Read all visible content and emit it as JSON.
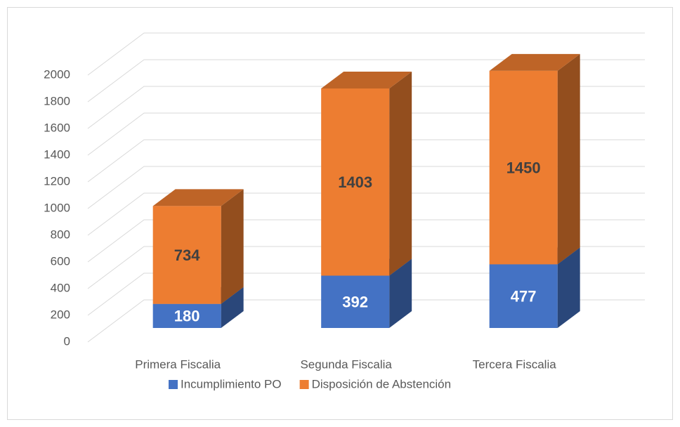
{
  "chart_data": {
    "type": "bar3d_stacked",
    "categories": [
      "Primera Fiscalia",
      "Segunda Fiscalia",
      "Tercera Fiscalia"
    ],
    "series": [
      {
        "name": "Incumplimiento PO",
        "color": "#4472c4",
        "values": [
          180,
          392,
          477
        ]
      },
      {
        "name": "Disposición de Abstención",
        "color": "#ed7d31",
        "values": [
          734,
          1403,
          1450
        ]
      }
    ],
    "ylim": [
      0,
      2000
    ],
    "yticks": [
      0,
      200,
      400,
      600,
      800,
      1000,
      1200,
      1400,
      1600,
      1800,
      2000
    ],
    "grid": true,
    "legend": "bottom"
  }
}
